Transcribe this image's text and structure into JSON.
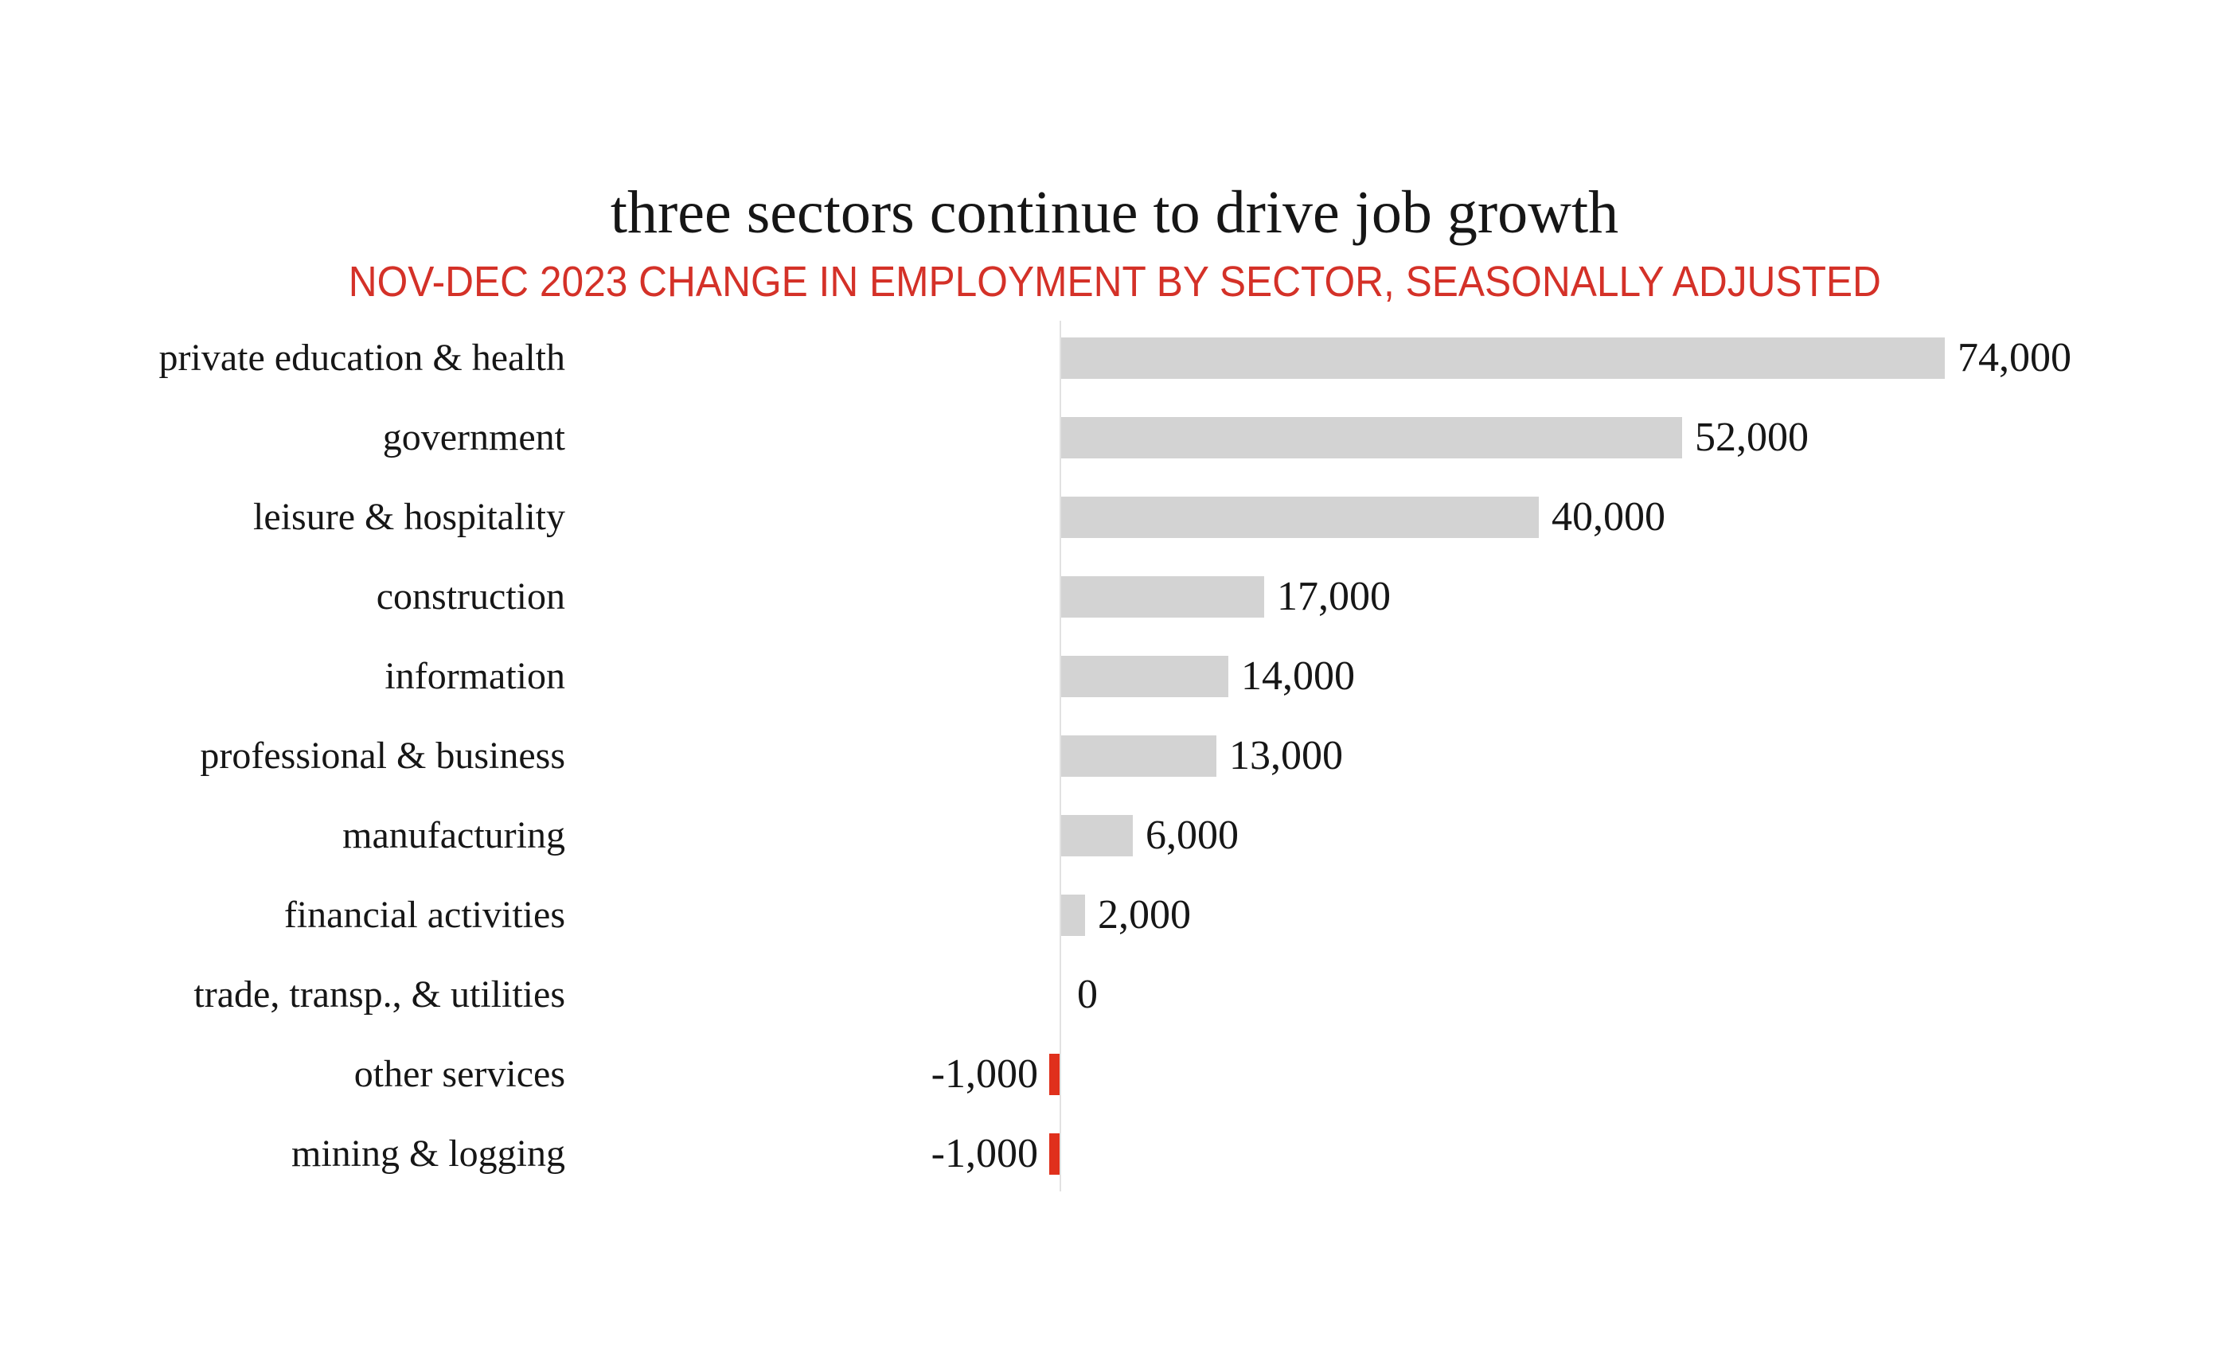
{
  "page": {
    "title": "three sectors continue to drive job growth",
    "subtitle": "NOV-DEC 2023 CHANGE IN EMPLOYMENT BY SECTOR, SEASONALLY ADJUSTED"
  },
  "colors": {
    "title_text": "#161616",
    "subtitle_red": "#d43128",
    "bar_gray": "#d3d3d3",
    "bar_red": "#e0301c",
    "axis_line": "#e2e2e2"
  },
  "chart_data": {
    "type": "bar",
    "orientation": "horizontal",
    "title": "three sectors continue to drive job growth",
    "subtitle": "NOV-DEC 2023 CHANGE IN EMPLOYMENT BY SECTOR, SEASONALLY ADJUSTED",
    "categories": [
      "private education & health",
      "government",
      "leisure & hospitality",
      "construction",
      "information",
      "professional & business",
      "manufacturing",
      "financial activities",
      "trade, transp., & utilities",
      "other services",
      "mining & logging"
    ],
    "values": [
      74000,
      52000,
      40000,
      17000,
      14000,
      13000,
      6000,
      2000,
      0,
      -1000,
      -1000
    ],
    "value_labels": [
      "74,000",
      "52,000",
      "40,000",
      "17,000",
      "14,000",
      "13,000",
      "6,000",
      "2,000",
      "0",
      "-1,000",
      "-1,000"
    ],
    "xlim": [
      -2000,
      90000
    ],
    "grid": false,
    "legend": false,
    "positive_bar_color": "#d3d3d3",
    "negative_bar_color": "#e0301c",
    "value_label_position": "outside-end",
    "zero_axis_line": true
  }
}
